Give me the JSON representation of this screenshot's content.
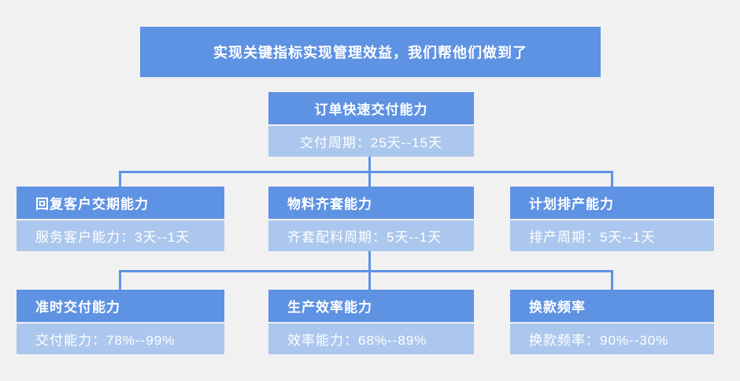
{
  "colors": {
    "background": "#f1f1f2",
    "primary": "#5e92e2",
    "light": "#acc7ed",
    "connector": "#5e92e2",
    "text": "#ffffff"
  },
  "title": {
    "text": "实现关键指标实现管理效益，我们帮他们做到了"
  },
  "root_node": {
    "title": "订单快速交付能力",
    "metric": "交付周期：25天--15天"
  },
  "level2": [
    {
      "title": "回复客户交期能力",
      "metric": "服务客户能力：3天--1天"
    },
    {
      "title": "物料齐套能力",
      "metric": "齐套配料周期：5天--1天"
    },
    {
      "title": "计划排产能力",
      "metric": "排产周期：5天--1天"
    }
  ],
  "level3": [
    {
      "title": "准时交付能力",
      "metric": "交付能力：78%--99%"
    },
    {
      "title": "生产效率能力",
      "metric": "效率能力：68%--89%"
    },
    {
      "title": "换款频率",
      "metric": "换款频率：90%--30%"
    }
  ]
}
